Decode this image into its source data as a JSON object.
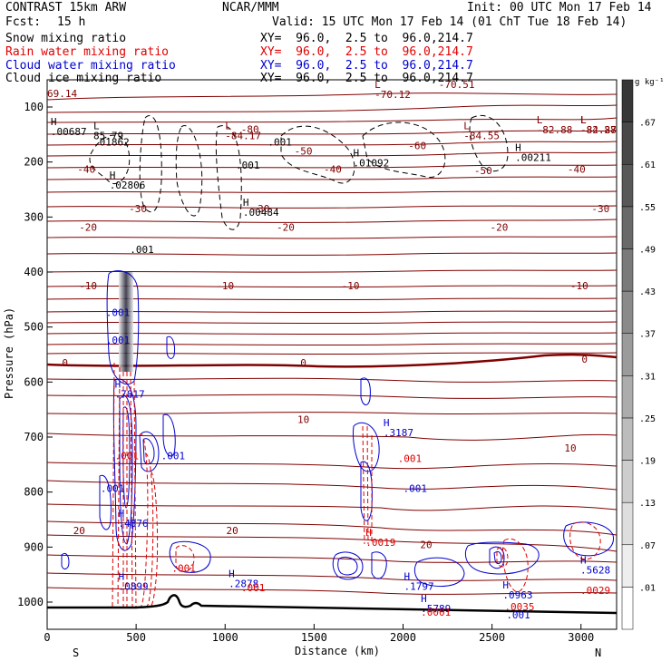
{
  "header": {
    "model": "CONTRAST 15km ARW",
    "org": "NCAR/MMM",
    "init": "Init: 00 UTC Mon 17 Feb 14",
    "fcst_label": "Fcst:",
    "fcst_value": "15 h",
    "valid": "Valid: 15 UTC Mon 17 Feb 14 (01 ChT Tue 18 Feb 14)"
  },
  "fields": [
    {
      "name": "Snow mixing ratio",
      "xy": "XY=  96.0,  2.5 to  96.0,214.7",
      "color": "#000000"
    },
    {
      "name": "Rain water mixing ratio",
      "xy": "XY=  96.0,  2.5 to  96.0,214.7",
      "color": "#e00000"
    },
    {
      "name": "Cloud water mixing ratio",
      "xy": "XY=  96.0,  2.5 to  96.0,214.7",
      "color": "#0000d0"
    },
    {
      "name": "Cloud ice mixing ratio",
      "xy": "XY=  96.0,  2.5 to  96.0,214.7",
      "color": "#000000"
    }
  ],
  "chart_data": {
    "type": "contour",
    "xlabel": "Distance (km)",
    "ylabel": "Pressure (hPa)",
    "xlim": [
      0,
      3200
    ],
    "ylim": [
      1050,
      50
    ],
    "x_ticks": [
      0,
      500,
      1000,
      1500,
      2000,
      2500,
      3000
    ],
    "y_ticks": [
      100,
      200,
      300,
      400,
      500,
      600,
      700,
      800,
      900,
      1000
    ],
    "x_end_labels": {
      "left": "S",
      "right": "N"
    },
    "colorbar": {
      "unit": "g kg⁻¹",
      "levels": [
        ".01",
        ".07",
        ".13",
        ".19",
        ".25",
        ".31",
        ".37",
        ".43",
        ".49",
        ".55",
        ".61",
        ".67"
      ]
    },
    "temperature_labels": [
      {
        "x": 220,
        "p": 213,
        "text": "-40",
        "color": "#800000"
      },
      {
        "x": 1605,
        "p": 213,
        "text": "-40",
        "color": "#800000"
      },
      {
        "x": 2975,
        "p": 213,
        "text": "-40",
        "color": "#800000"
      },
      {
        "x": 510,
        "p": 285,
        "text": "-30",
        "color": "#800000"
      },
      {
        "x": 1200,
        "p": 285,
        "text": "-30",
        "color": "#800000"
      },
      {
        "x": 3110,
        "p": 285,
        "text": "-30",
        "color": "#800000"
      },
      {
        "x": 230,
        "p": 318,
        "text": "-20",
        "color": "#800000"
      },
      {
        "x": 1340,
        "p": 318,
        "text": "-20",
        "color": "#800000"
      },
      {
        "x": 2540,
        "p": 318,
        "text": "-20",
        "color": "#800000"
      },
      {
        "x": 230,
        "p": 425,
        "text": "-10",
        "color": "#800000"
      },
      {
        "x": 1000,
        "p": 425,
        "text": "-10",
        "color": "#800000"
      },
      {
        "x": 1705,
        "p": 425,
        "text": "-10",
        "color": "#800000"
      },
      {
        "x": 2990,
        "p": 425,
        "text": "-10",
        "color": "#800000"
      },
      {
        "x": 100,
        "p": 565,
        "text": "0",
        "color": "#800000"
      },
      {
        "x": 1440,
        "p": 565,
        "text": "0",
        "color": "#800000"
      },
      {
        "x": 3020,
        "p": 558,
        "text": "0",
        "color": "#800000"
      },
      {
        "x": 1440,
        "p": 668,
        "text": "10",
        "color": "#800000"
      },
      {
        "x": 2940,
        "p": 720,
        "text": "10",
        "color": "#800000"
      },
      {
        "x": 1040,
        "p": 870,
        "text": "20",
        "color": "#800000"
      },
      {
        "x": 180,
        "p": 870,
        "text": "20",
        "color": "#800000"
      },
      {
        "x": 2130,
        "p": 895,
        "text": "20",
        "color": "#800000"
      },
      {
        "x": 1140,
        "p": 140,
        "text": "-80",
        "color": "#800000"
      },
      {
        "x": 2080,
        "p": 170,
        "text": "-60",
        "color": "#800000"
      },
      {
        "x": 2450,
        "p": 215,
        "text": "-50",
        "color": "#800000"
      },
      {
        "x": 1440,
        "p": 180,
        "text": "-50",
        "color": "#800000"
      }
    ],
    "extrema_labels": [
      {
        "x": 20,
        "p": 133,
        "text": "H\n.00687",
        "color": "#000000"
      },
      {
        "x": 260,
        "p": 140,
        "text": "L\n85.79",
        "color": "#000000"
      },
      {
        "x": 260,
        "p": 170,
        "text": ".01862",
        "color": "#000000"
      },
      {
        "x": 1000,
        "p": 140,
        "text": "L\n-84.17",
        "color": "#800000"
      },
      {
        "x": 2340,
        "p": 140,
        "text": "L\n-84.55",
        "color": "#800000"
      },
      {
        "x": 2750,
        "p": 130,
        "text": "L\n-82.88",
        "color": "#800000"
      },
      {
        "x": 3000,
        "p": 130,
        "text": "L\n-82.88",
        "color": "#800000"
      },
      {
        "x": 3200,
        "p": 130,
        "text": "L\n-84.27",
        "color": "#800000"
      },
      {
        "x": 1840,
        "p": 65,
        "text": "L\n-70.12",
        "color": "#800000"
      },
      {
        "x": 2200,
        "p": 65,
        "text": "-70.51",
        "color": "#800000"
      },
      {
        "x": 0,
        "p": 82,
        "text": "69.14",
        "color": "#800000"
      },
      {
        "x": 1240,
        "p": 170,
        "text": ".001",
        "color": "#000000"
      },
      {
        "x": 1720,
        "p": 190,
        "text": "H\n.01092",
        "color": "#000000"
      },
      {
        "x": 2630,
        "p": 180,
        "text": "H\n.00211",
        "color": "#000000"
      },
      {
        "x": 350,
        "p": 230,
        "text": "H\n.02806",
        "color": "#000000"
      },
      {
        "x": 1060,
        "p": 212,
        "text": ".001",
        "color": "#000000"
      },
      {
        "x": 1100,
        "p": 280,
        "text": "H\n.00484",
        "color": "#000000"
      },
      {
        "x": 465,
        "p": 365,
        "text": ".001",
        "color": "#000000"
      },
      {
        "x": 330,
        "p": 480,
        "text": ".001",
        "color": "#0000d0"
      },
      {
        "x": 330,
        "p": 530,
        "text": ".001",
        "color": "#0000d0"
      },
      {
        "x": 380,
        "p": 610,
        "text": "H\n.7817",
        "color": "#0000d0"
      },
      {
        "x": 1890,
        "p": 680,
        "text": "H\n.3187",
        "color": "#0000d0"
      },
      {
        "x": 640,
        "p": 740,
        "text": ".001",
        "color": "#0000d0"
      },
      {
        "x": 300,
        "p": 800,
        "text": ".001",
        "color": "#0000d0"
      },
      {
        "x": 1970,
        "p": 745,
        "text": ".001",
        "color": "#e00000"
      },
      {
        "x": 2000,
        "p": 800,
        "text": ".001",
        "color": "#0000d0"
      },
      {
        "x": 400,
        "p": 845,
        "text": "H\n.4876",
        "color": "#0000d0"
      },
      {
        "x": 1790,
        "p": 880,
        "text": "H\n.0019",
        "color": "#e00000"
      },
      {
        "x": 380,
        "p": 740,
        "text": ".001",
        "color": "#e00000"
      },
      {
        "x": 400,
        "p": 960,
        "text": "H\n.0899",
        "color": "#0000d0"
      },
      {
        "x": 1020,
        "p": 955,
        "text": "H\n.2878",
        "color": "#0000d0"
      },
      {
        "x": 700,
        "p": 945,
        "text": ".001",
        "color": "#e00000"
      },
      {
        "x": 1090,
        "p": 980,
        "text": ".001",
        "color": "#e00000"
      },
      {
        "x": 2005,
        "p": 960,
        "text": "H\n.1797",
        "color": "#0000d0"
      },
      {
        "x": 2100,
        "p": 1000,
        "text": "H\n.5789",
        "color": "#0000d0"
      },
      {
        "x": 2100,
        "p": 1025,
        "text": ".0001",
        "color": "#e00000"
      },
      {
        "x": 2560,
        "p": 975,
        "text": "H\n.0963",
        "color": "#0000d0"
      },
      {
        "x": 2570,
        "p": 1015,
        "text": ".0035",
        "color": "#e00000"
      },
      {
        "x": 2580,
        "p": 1030,
        "text": ".001",
        "color": "#0000d0"
      },
      {
        "x": 3070,
        "p": 930,
        "text": "H\n.5628",
        "color": "#0000d0"
      },
      {
        "x": 3080,
        "p": 985,
        "text": ".0029",
        "color": "#e00000"
      }
    ]
  }
}
